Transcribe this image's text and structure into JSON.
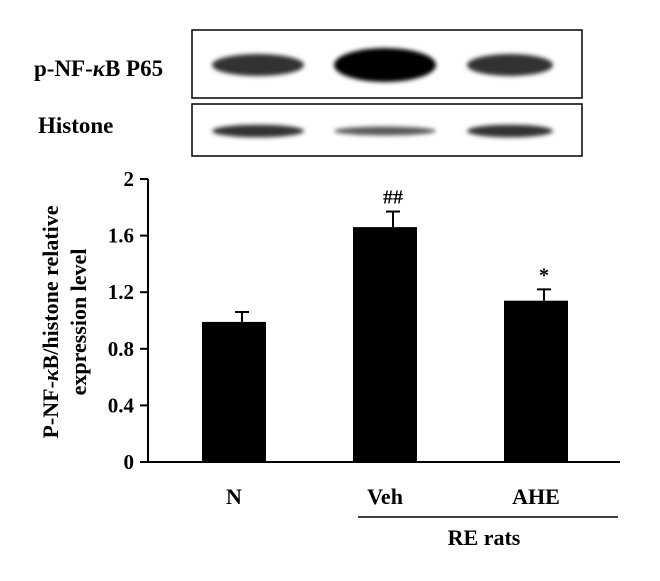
{
  "blot": {
    "rows": [
      {
        "label_prefix": "p-NF-",
        "label_kappa": "κ",
        "label_suffix": "B P65",
        "band_intensity": [
          0.8,
          1.0,
          0.8
        ],
        "band_thickness": [
          0.55,
          0.85,
          0.55
        ]
      },
      {
        "label_prefix": "Histone",
        "label_kappa": "",
        "label_suffix": "",
        "band_intensity": [
          0.8,
          0.65,
          0.8
        ],
        "band_thickness": [
          0.45,
          0.32,
          0.45
        ]
      }
    ]
  },
  "chart_data": {
    "type": "bar",
    "categories": [
      "N",
      "Veh",
      "AHE"
    ],
    "values": [
      0.99,
      1.66,
      1.14
    ],
    "errors": [
      0.07,
      0.11,
      0.08
    ],
    "annotations": [
      "",
      "##",
      "*"
    ],
    "ylabel_line1_prefix": "P-NF-",
    "ylabel_line1_kappa": "κ",
    "ylabel_line1_suffix": "B/histone relative",
    "ylabel_line2": "expression level",
    "ylim": [
      0,
      2
    ],
    "yticks": [
      "0",
      "0.4",
      "0.8",
      "1.2",
      "1.6",
      "2"
    ],
    "group_label": "RE rats",
    "bar_color": "#000000"
  }
}
